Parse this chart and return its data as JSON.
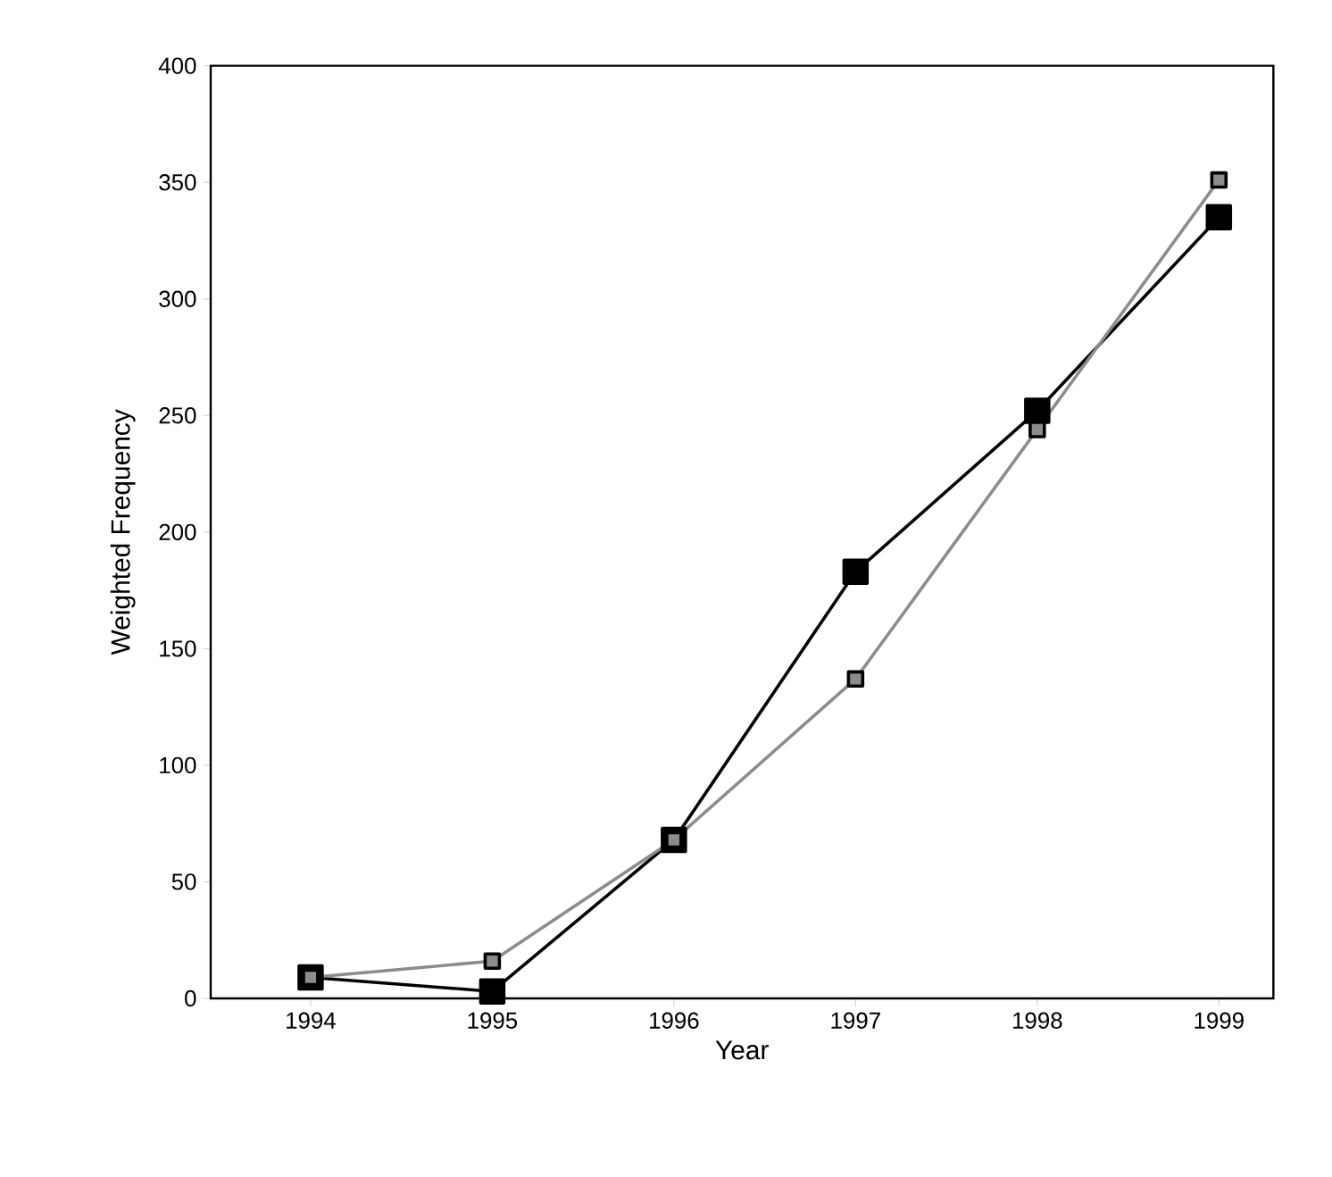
{
  "chart_data": {
    "type": "line",
    "xlabel": "Year",
    "ylabel": "Weighted Frequency",
    "x": [
      1994,
      1995,
      1996,
      1997,
      1998,
      1999
    ],
    "xlim": [
      1993.45,
      1999.3
    ],
    "xticks": [
      1994,
      1995,
      1996,
      1997,
      1998,
      1999
    ],
    "ylim": [
      0,
      400
    ],
    "yticks": [
      0,
      50,
      100,
      150,
      200,
      250,
      300,
      350,
      400
    ],
    "marker": "square",
    "grid": false,
    "series": [
      {
        "color": "#000000",
        "values": [
          9,
          3,
          68,
          183,
          252,
          335
        ]
      },
      {
        "color": "#8c8c8c",
        "values": [
          9,
          16,
          68,
          137,
          244,
          351
        ]
      }
    ]
  }
}
